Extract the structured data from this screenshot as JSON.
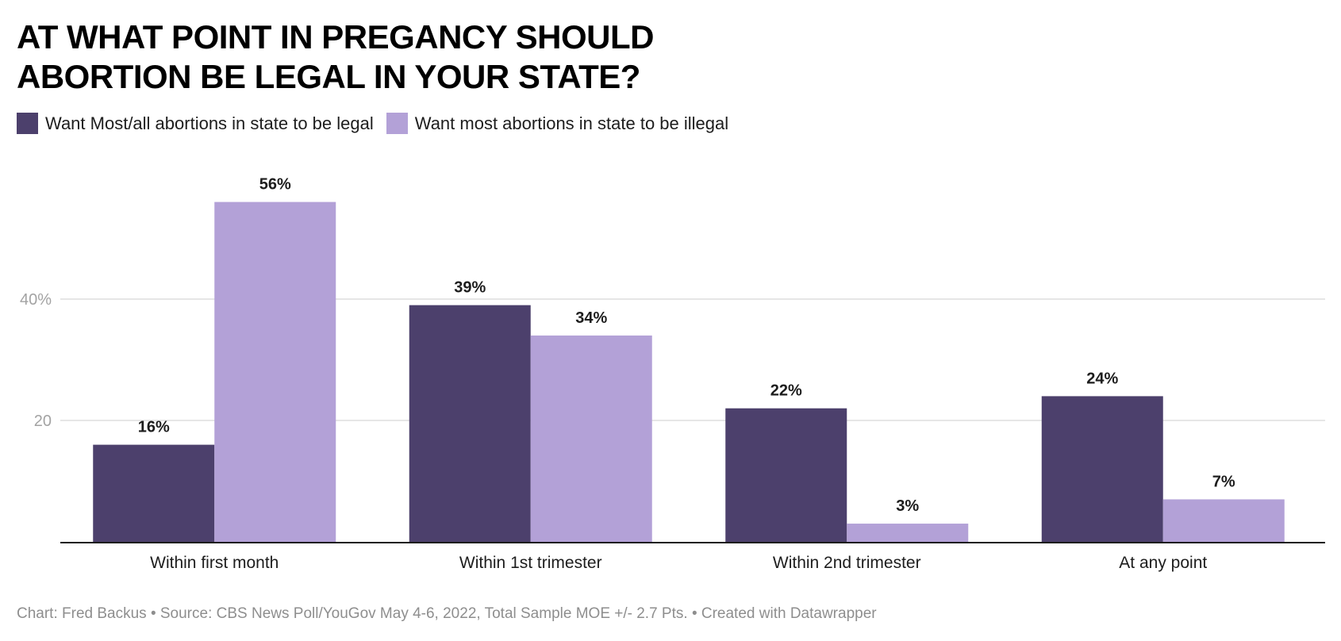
{
  "chart_data": {
    "type": "bar",
    "title": "AT WHAT POINT IN PREGANCY SHOULD ABORTION BE LEGAL IN YOUR STATE?",
    "title_lines": [
      "AT WHAT POINT IN PREGANCY SHOULD",
      "ABORTION BE LEGAL IN YOUR STATE?"
    ],
    "categories": [
      "Within first month",
      "Within 1st trimester",
      "Within 2nd trimester",
      "At any point"
    ],
    "series": [
      {
        "name": "Want Most/all abortions in state to be legal",
        "color": "#4c406c",
        "values": [
          16,
          39,
          22,
          24
        ],
        "labels": [
          "16%",
          "39%",
          "22%",
          "24%"
        ]
      },
      {
        "name": "Want most abortions in state to be illegal",
        "color": "#b3a1d7",
        "values": [
          56,
          34,
          3,
          7
        ],
        "labels": [
          "56%",
          "34%",
          "3%",
          "7%"
        ]
      }
    ],
    "yticks": [
      {
        "value": 20,
        "label": "20"
      },
      {
        "value": 40,
        "label": "40%"
      }
    ],
    "ylim": [
      0,
      60
    ],
    "grid": true,
    "legend": "top-left",
    "xlabel": "",
    "ylabel": ""
  },
  "footer": "Chart: Fred Backus • Source: CBS News Poll/YouGov May 4-6, 2022, Total Sample MOE +/- 2.7 Pts. • Created with Datawrapper"
}
